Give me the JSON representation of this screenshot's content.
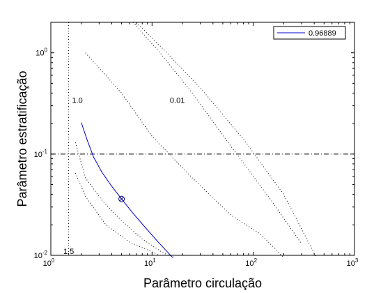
{
  "chart_data": {
    "type": "line",
    "xlabel": "Parâmetro circulação",
    "ylabel": "Parâmetro estratificação",
    "xscale": "log",
    "yscale": "log",
    "xlim": [
      1,
      1000
    ],
    "ylim": [
      0.01,
      2
    ],
    "grid": false,
    "legend_position": "top-right",
    "x_ticks": [
      {
        "value": 1,
        "base": "10",
        "exp": "0"
      },
      {
        "value": 10,
        "base": "10",
        "exp": "1"
      },
      {
        "value": 100,
        "base": "10",
        "exp": "2"
      },
      {
        "value": 1000,
        "base": "10",
        "exp": "3"
      }
    ],
    "y_ticks": [
      {
        "value": 0.01,
        "base": "10",
        "exp": "-2"
      },
      {
        "value": 0.1,
        "base": "10",
        "exp": "-1"
      },
      {
        "value": 1,
        "base": "10",
        "exp": "0"
      }
    ],
    "series": [
      {
        "name": "0.96889",
        "color": "#0000cc",
        "style": "solid",
        "x": [
          2.0,
          2.3,
          2.65,
          3.2,
          4.0,
          5.0,
          6.5,
          8.5,
          11.5,
          16.0
        ],
        "y": [
          0.205,
          0.135,
          0.093,
          0.066,
          0.048,
          0.036,
          0.026,
          0.019,
          0.0135,
          0.0095
        ]
      }
    ],
    "marker": {
      "x": 5.0,
      "y": 0.036,
      "shape": "circle-x",
      "color": "#000080"
    },
    "reference_lines": [
      {
        "orientation": "vertical",
        "value": 1.5,
        "style": "dotted",
        "label": "1.5"
      },
      {
        "orientation": "horizontal",
        "value": 0.1,
        "style": "dashdot"
      }
    ],
    "contours": [
      {
        "label": "1.0",
        "style": "dotted",
        "x": [
          1.75,
          2.2,
          3.2,
          5.0,
          8.0,
          13.0,
          17.0
        ],
        "y": [
          0.13,
          0.058,
          0.035,
          0.022,
          0.0145,
          0.0105,
          0.0095
        ]
      },
      {
        "label": "",
        "style": "dotted",
        "x": [
          1.75,
          2.2,
          3.5,
          6.0,
          12.0
        ],
        "y": [
          0.065,
          0.038,
          0.02,
          0.0135,
          0.01
        ]
      },
      {
        "label": "",
        "style": "dotted",
        "x": [
          2.2,
          5.0,
          10.0,
          25.0,
          60.0,
          120.0,
          200.0
        ],
        "y": [
          1.0,
          0.4,
          0.15,
          0.058,
          0.025,
          0.016,
          0.0095
        ]
      },
      {
        "label": "0.01",
        "style": "dotted",
        "x": [
          6.5,
          12.0,
          25.0,
          60.0,
          150.0,
          300.0
        ],
        "y": [
          2.0,
          1.0,
          0.4,
          0.12,
          0.035,
          0.013
        ]
      },
      {
        "label": "",
        "style": "dotted",
        "x": [
          7.0,
          14.0,
          30.0,
          80.0,
          200.0,
          420.0
        ],
        "y": [
          2.0,
          1.0,
          0.45,
          0.14,
          0.04,
          0.0095
        ]
      }
    ],
    "annotations": [
      {
        "text": "1.0",
        "x": 1.62,
        "y": 0.32
      },
      {
        "text": "0.01",
        "x": 15.0,
        "y": 0.32
      }
    ]
  }
}
